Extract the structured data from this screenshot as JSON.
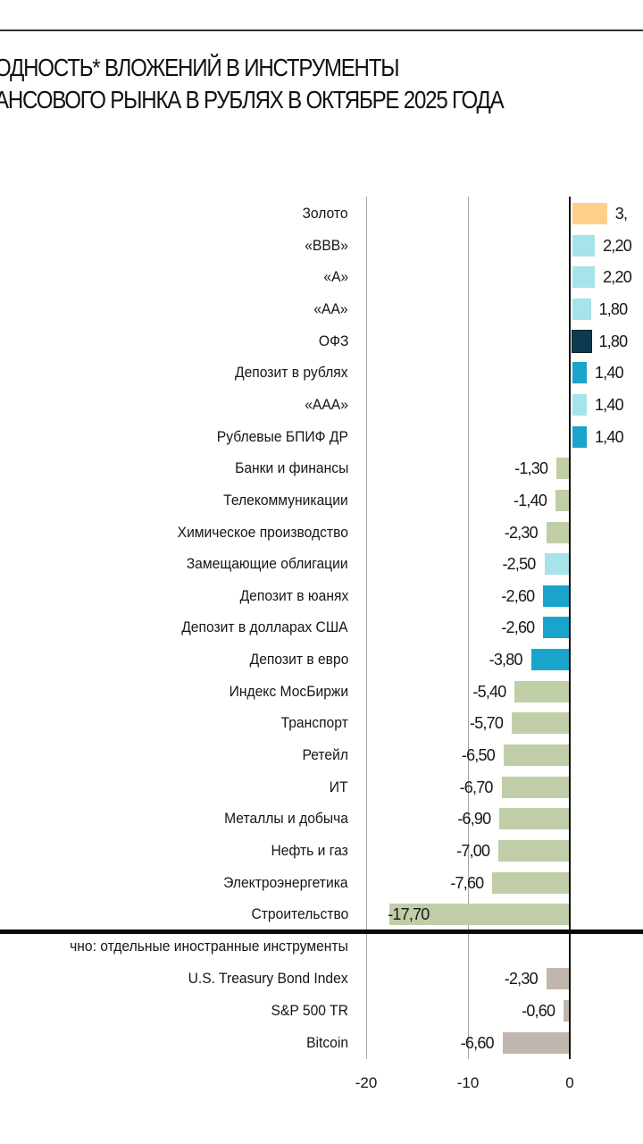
{
  "header": {
    "title_line1": "ОДНОСТЬ* ВЛОЖЕНИЙ В ИНСТРУМЕНТЫ",
    "title_line2": "АНСОВОГО РЫНКА В РУБЛЯХ В ОКТЯБРЕ 2025 ГОДА"
  },
  "colors": {
    "gold": "#fcd08a",
    "light_blue": "#a6e3ea",
    "dark_navy": "#0d3a4e",
    "teal_blue": "#1aa4cc",
    "sage_green": "#c0cea8",
    "taupe": "#c1b6ad",
    "gridline": "#a9a2a0",
    "axis": "#111111"
  },
  "foreign_section_header": "чно: отдельные иностранные инструменты",
  "chart_data": {
    "type": "bar",
    "orientation": "horizontal",
    "title": "…одность* вложений в инструменты …ансового рынка в рублях в октябре 2025 года",
    "xlabel": "",
    "ylabel": "",
    "xlim": [
      -20,
      7
    ],
    "x_ticks": [
      "-20",
      "-10",
      "0"
    ],
    "grid": true,
    "legend": null,
    "categories": [
      "Золото",
      "«BBB»",
      "«A»",
      "«AA»",
      "ОФЗ",
      "Депозит в рублях",
      "«AAA»",
      "Рублевые БПИФ ДР",
      "Банки и финансы",
      "Телекоммуникации",
      "Химическое производство",
      "Замещающие облигации",
      "Депозит в юанях",
      "Депозит в долларах США",
      "Депозит в евро",
      "Индекс МосБиржи",
      "Транспорт",
      "Ретейл",
      "ИТ",
      "Металлы и добыча",
      "Нефть и газ",
      "Электроэнергетика",
      "Строительство"
    ],
    "values": [
      3.4,
      2.2,
      2.2,
      1.8,
      1.8,
      1.4,
      1.4,
      1.4,
      -1.3,
      -1.4,
      -2.3,
      -2.5,
      -2.6,
      -2.6,
      -3.8,
      -5.4,
      -5.7,
      -6.5,
      -6.7,
      -6.9,
      -7.0,
      -7.6,
      -17.7
    ],
    "rows": [
      {
        "label": "Золото",
        "value": 3.4,
        "display": "3,",
        "color": "#fcd08a"
      },
      {
        "label": "«BBB»",
        "value": 2.2,
        "display": "2,20",
        "color": "#a6e3ea"
      },
      {
        "label": "«A»",
        "value": 2.2,
        "display": "2,20",
        "color": "#a6e3ea"
      },
      {
        "label": "«AA»",
        "value": 1.8,
        "display": "1,80",
        "color": "#a6e3ea"
      },
      {
        "label": "ОФЗ",
        "value": 1.8,
        "display": "1,80",
        "color": "#0d3a4e"
      },
      {
        "label": "Депозит в рублях",
        "value": 1.4,
        "display": "1,40",
        "color": "#1aa4cc"
      },
      {
        "label": "«AAA»",
        "value": 1.4,
        "display": "1,40",
        "color": "#a6e3ea"
      },
      {
        "label": "Рублевые БПИФ ДР",
        "value": 1.4,
        "display": "1,40",
        "color": "#1aa4cc"
      },
      {
        "label": "Банки и финансы",
        "value": -1.3,
        "display": "-1,30",
        "color": "#c0cea8"
      },
      {
        "label": "Телекоммуникации",
        "value": -1.4,
        "display": "-1,40",
        "color": "#c0cea8"
      },
      {
        "label": "Химическое производство",
        "value": -2.3,
        "display": "-2,30",
        "color": "#c0cea8"
      },
      {
        "label": "Замещающие облигации",
        "value": -2.5,
        "display": "-2,50",
        "color": "#a6e3ea"
      },
      {
        "label": "Депозит в юанях",
        "value": -2.6,
        "display": "-2,60",
        "color": "#1aa4cc"
      },
      {
        "label": "Депозит в долларах США",
        "value": -2.6,
        "display": "-2,60",
        "color": "#1aa4cc"
      },
      {
        "label": "Депозит в евро",
        "value": -3.8,
        "display": "-3,80",
        "color": "#1aa4cc"
      },
      {
        "label": "Индекс МосБиржи",
        "value": -5.4,
        "display": "-5,40",
        "color": "#c0cea8"
      },
      {
        "label": "Транспорт",
        "value": -5.7,
        "display": "-5,70",
        "color": "#c0cea8"
      },
      {
        "label": "Ретейл",
        "value": -6.5,
        "display": "-6,50",
        "color": "#c0cea8"
      },
      {
        "label": "ИТ",
        "value": -6.7,
        "display": "-6,70",
        "color": "#c0cea8"
      },
      {
        "label": "Металлы и добыча",
        "value": -6.9,
        "display": "-6,90",
        "color": "#c0cea8"
      },
      {
        "label": "Нефть и газ",
        "value": -7.0,
        "display": "-7,00",
        "color": "#c0cea8"
      },
      {
        "label": "Электроэнергетика",
        "value": -7.6,
        "display": "-7,60",
        "color": "#c0cea8"
      },
      {
        "label": "Строительство",
        "value": -17.7,
        "display": "-17,70",
        "color": "#c0cea8"
      }
    ],
    "foreign_section": {
      "header": "чно: отдельные иностранные инструменты",
      "rows": [
        {
          "label": "U.S. Treasury Bond Index",
          "value": -2.3,
          "display": "-2,30",
          "color": "#c1b6ad"
        },
        {
          "label": "S&P 500 TR",
          "value": -0.6,
          "display": "-0,60",
          "color": "#c1b6ad"
        },
        {
          "label": "Bitcoin",
          "value": -6.6,
          "display": "-6,60",
          "color": "#c1b6ad"
        }
      ]
    }
  }
}
